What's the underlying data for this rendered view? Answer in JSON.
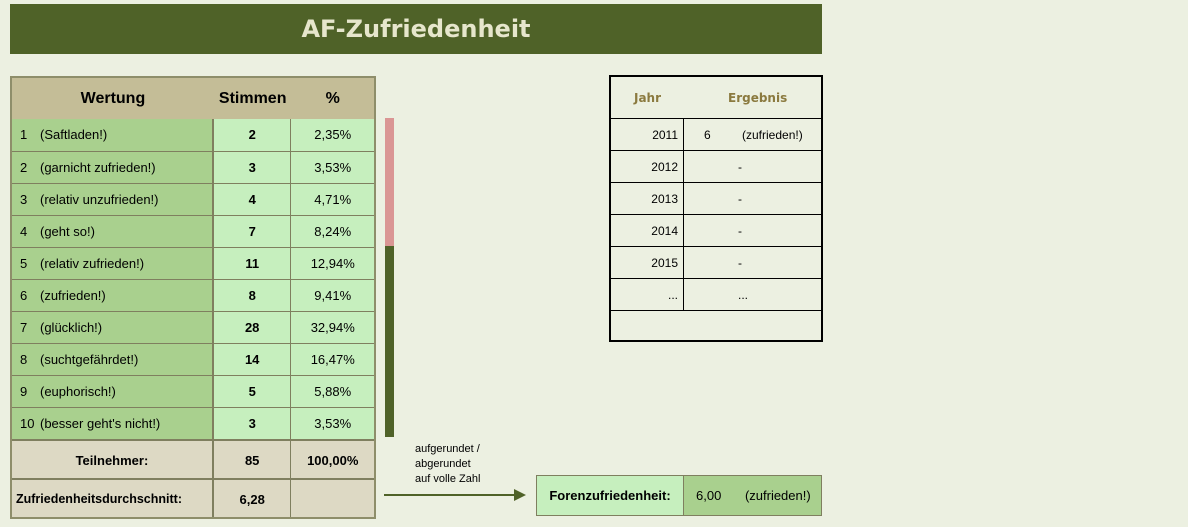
{
  "title": "AF-Zufriedenheit",
  "table": {
    "headers": {
      "wertung": "Wertung",
      "stimmen": "Stimmen",
      "percent": "%"
    },
    "rows": [
      {
        "num": "1",
        "label": "(Saftladen!)",
        "votes": "2",
        "pct": "2,35%"
      },
      {
        "num": "2",
        "label": "(garnicht zufrieden!)",
        "votes": "3",
        "pct": "3,53%"
      },
      {
        "num": "3",
        "label": "(relativ unzufrieden!)",
        "votes": "4",
        "pct": "4,71%"
      },
      {
        "num": "4",
        "label": "(geht so!)",
        "votes": "7",
        "pct": "8,24%"
      },
      {
        "num": "5",
        "label": "(relativ zufrieden!)",
        "votes": "11",
        "pct": "12,94%"
      },
      {
        "num": "6",
        "label": "(zufrieden!)",
        "votes": "8",
        "pct": "9,41%"
      },
      {
        "num": "7",
        "label": "(glücklich!)",
        "votes": "28",
        "pct": "32,94%"
      },
      {
        "num": "8",
        "label": "(suchtgefährdet!)",
        "votes": "14",
        "pct": "16,47%"
      },
      {
        "num": "9",
        "label": "(euphorisch!)",
        "votes": "5",
        "pct": "5,88%"
      },
      {
        "num": "10",
        "label": "(besser geht's nicht!)",
        "votes": "3",
        "pct": "3,53%"
      }
    ],
    "participants": {
      "label": "Teilnehmer:",
      "votes": "85",
      "pct": "100,00%"
    },
    "average": {
      "label": "Zufriedenheitsdurchschnitt:",
      "value": "6,28"
    }
  },
  "note": {
    "line1": "aufgerundet /",
    "line2": "abgerundet",
    "line3": "auf volle Zahl"
  },
  "result": {
    "label": "Forenzufriedenheit:",
    "value": "6,00",
    "text": "(zufrieden!)"
  },
  "years": {
    "headers": {
      "year": "Jahr",
      "result": "Ergebnis"
    },
    "rows": [
      {
        "year": "2011",
        "result": "6",
        "text": "(zufrieden!)"
      },
      {
        "year": "2012",
        "result": "-"
      },
      {
        "year": "2013",
        "result": "-"
      },
      {
        "year": "2014",
        "result": "-"
      },
      {
        "year": "2015",
        "result": "-"
      },
      {
        "year": "...",
        "result": "..."
      }
    ]
  },
  "colors": {
    "header_dark_green": "#4f6228",
    "label_green": "#a9d08e",
    "value_green": "#c6efbe",
    "bar_red": "#da9694",
    "tan": "#c4bd97"
  }
}
